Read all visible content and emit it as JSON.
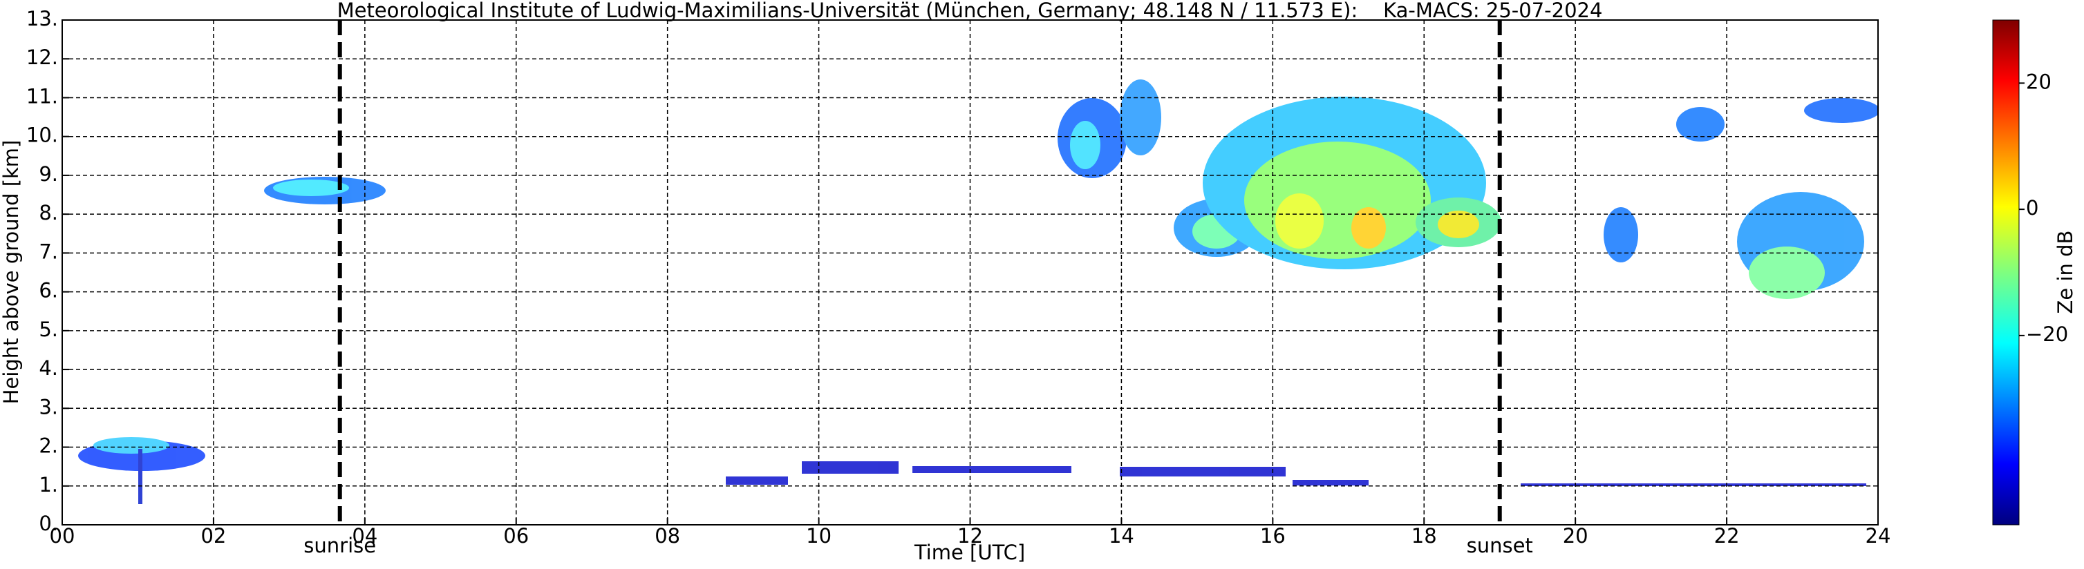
{
  "chart_data": {
    "type": "heatmap",
    "title": "Meteorological Institute of Ludwig-Maximilians-Universität (München, Germany; 48.148 N / 11.573 E):    Ka-MACS: 25-07-2024",
    "x_label": "Time [UTC]",
    "y_label": "Height above ground [km]",
    "colorbar_label": "Ze in dB",
    "xlim": [
      0,
      24
    ],
    "xticks": [
      {
        "value": 0,
        "label": "00"
      },
      {
        "value": 2,
        "label": "02"
      },
      {
        "value": 4,
        "label": "04"
      },
      {
        "value": 6,
        "label": "06"
      },
      {
        "value": 8,
        "label": "08"
      },
      {
        "value": 10,
        "label": "10"
      },
      {
        "value": 12,
        "label": "12"
      },
      {
        "value": 14,
        "label": "14"
      },
      {
        "value": 16,
        "label": "16"
      },
      {
        "value": 18,
        "label": "18"
      },
      {
        "value": 20,
        "label": "20"
      },
      {
        "value": 22,
        "label": "22"
      },
      {
        "value": 24,
        "label": "24"
      }
    ],
    "ylim": [
      0,
      13
    ],
    "yticks": [
      {
        "value": 0,
        "label": "0."
      },
      {
        "value": 1,
        "label": "1."
      },
      {
        "value": 2,
        "label": "2."
      },
      {
        "value": 3,
        "label": "3."
      },
      {
        "value": 4,
        "label": "4."
      },
      {
        "value": 5,
        "label": "5."
      },
      {
        "value": 6,
        "label": "6."
      },
      {
        "value": 7,
        "label": "7."
      },
      {
        "value": 8,
        "label": "8."
      },
      {
        "value": 9,
        "label": "9."
      },
      {
        "value": 10,
        "label": "10."
      },
      {
        "value": 11,
        "label": "11."
      },
      {
        "value": 12,
        "label": "12."
      },
      {
        "value": 13,
        "label": "13."
      }
    ],
    "clim": [
      -50,
      30
    ],
    "cticks": [
      {
        "value": -20,
        "label": "−20"
      },
      0,
      20
    ],
    "grid": true,
    "annotations": [
      {
        "text": "sunrise",
        "x": 3.67
      },
      {
        "text": "sunset",
        "x": 19.0
      }
    ]
  }
}
